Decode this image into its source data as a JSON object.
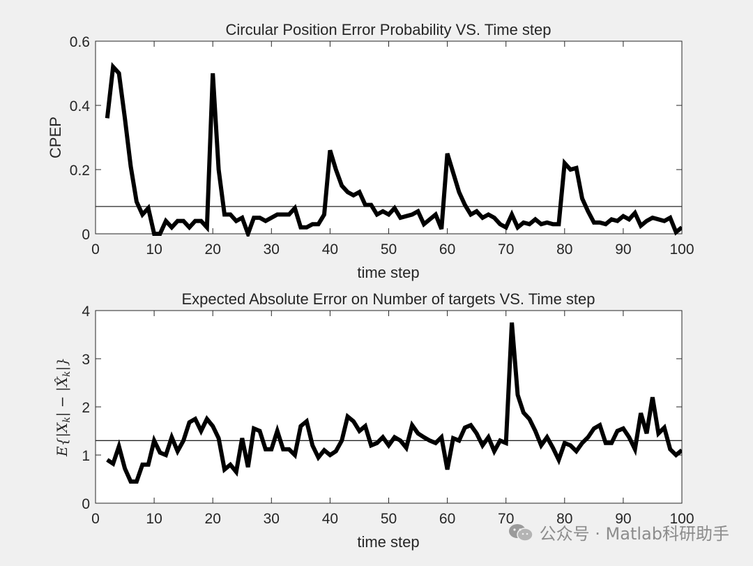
{
  "chart_data": [
    {
      "type": "line",
      "title": "Circular Position Error Probability VS. Time step",
      "xlabel": "time step",
      "ylabel": "CPEP",
      "xlim": [
        0,
        100
      ],
      "ylim": [
        0,
        0.6
      ],
      "xticks": [
        "0",
        "10",
        "20",
        "30",
        "40",
        "50",
        "60",
        "70",
        "80",
        "90",
        "100"
      ],
      "yticks": [
        "0",
        "0.2",
        "0.4",
        "0.6"
      ],
      "xtick_values": [
        0,
        10,
        20,
        30,
        40,
        50,
        60,
        70,
        80,
        90,
        100
      ],
      "ytick_values": [
        0,
        0.2,
        0.4,
        0.6
      ],
      "reference_line": 0.085,
      "x": [
        2,
        3,
        4,
        5,
        6,
        7,
        8,
        9,
        10,
        11,
        12,
        13,
        14,
        15,
        16,
        17,
        18,
        19,
        20,
        21,
        22,
        23,
        24,
        25,
        26,
        27,
        28,
        29,
        30,
        31,
        32,
        33,
        34,
        35,
        36,
        37,
        38,
        39,
        40,
        41,
        42,
        43,
        44,
        45,
        46,
        47,
        48,
        49,
        50,
        51,
        52,
        53,
        54,
        55,
        56,
        57,
        58,
        59,
        60,
        61,
        62,
        63,
        64,
        65,
        66,
        67,
        68,
        69,
        70,
        71,
        72,
        73,
        74,
        75,
        76,
        77,
        78,
        79,
        80,
        81,
        82,
        83,
        84,
        85,
        86,
        87,
        88,
        89,
        90,
        91,
        92,
        93,
        94,
        95,
        96,
        97,
        98,
        99,
        100
      ],
      "series": [
        {
          "name": "CPEP",
          "values": [
            0.36,
            0.52,
            0.5,
            0.36,
            0.21,
            0.1,
            0.06,
            0.08,
            0.0,
            0.0,
            0.04,
            0.02,
            0.04,
            0.04,
            0.02,
            0.04,
            0.04,
            0.02,
            0.5,
            0.2,
            0.06,
            0.06,
            0.04,
            0.05,
            0.0,
            0.05,
            0.05,
            0.04,
            0.05,
            0.06,
            0.06,
            0.06,
            0.08,
            0.02,
            0.02,
            0.03,
            0.03,
            0.06,
            0.26,
            0.2,
            0.15,
            0.13,
            0.12,
            0.13,
            0.09,
            0.09,
            0.06,
            0.07,
            0.06,
            0.08,
            0.05,
            0.055,
            0.06,
            0.07,
            0.03,
            0.045,
            0.06,
            0.015,
            0.25,
            0.19,
            0.13,
            0.09,
            0.06,
            0.07,
            0.05,
            0.06,
            0.05,
            0.03,
            0.02,
            0.06,
            0.02,
            0.035,
            0.03,
            0.045,
            0.03,
            0.035,
            0.03,
            0.03,
            0.22,
            0.2,
            0.205,
            0.11,
            0.07,
            0.035,
            0.035,
            0.03,
            0.045,
            0.04,
            0.055,
            0.045,
            0.065,
            0.025,
            0.04,
            0.05,
            0.045,
            0.04,
            0.05,
            0.005,
            0.02
          ]
        }
      ]
    },
    {
      "type": "line",
      "title": "Expected Absolute Error on Number of targets VS. Time step",
      "xlabel": "time step",
      "ylabel": "E{|X_k| - |\\hat{X}_k|}",
      "xlim": [
        0,
        100
      ],
      "ylim": [
        0,
        4
      ],
      "xticks": [
        "0",
        "10",
        "20",
        "30",
        "40",
        "50",
        "60",
        "70",
        "80",
        "90",
        "100"
      ],
      "yticks": [
        "0",
        "1",
        "2",
        "3",
        "4"
      ],
      "xtick_values": [
        0,
        10,
        20,
        30,
        40,
        50,
        60,
        70,
        80,
        90,
        100
      ],
      "ytick_values": [
        0,
        1,
        2,
        3,
        4
      ],
      "reference_line": 1.3,
      "x": [
        2,
        3,
        4,
        5,
        6,
        7,
        8,
        9,
        10,
        11,
        12,
        13,
        14,
        15,
        16,
        17,
        18,
        19,
        20,
        21,
        22,
        23,
        24,
        25,
        26,
        27,
        28,
        29,
        30,
        31,
        32,
        33,
        34,
        35,
        36,
        37,
        38,
        39,
        40,
        41,
        42,
        43,
        44,
        45,
        46,
        47,
        48,
        49,
        50,
        51,
        52,
        53,
        54,
        55,
        56,
        57,
        58,
        59,
        60,
        61,
        62,
        63,
        64,
        65,
        66,
        67,
        68,
        69,
        70,
        71,
        72,
        73,
        74,
        75,
        76,
        77,
        78,
        79,
        80,
        81,
        82,
        83,
        84,
        85,
        86,
        87,
        88,
        89,
        90,
        91,
        92,
        93,
        94,
        95,
        96,
        97,
        98,
        99,
        100
      ],
      "series": [
        {
          "name": "absolute error",
          "values": [
            0.9,
            0.82,
            1.18,
            0.72,
            0.45,
            0.45,
            0.8,
            0.8,
            1.3,
            1.05,
            1.0,
            1.37,
            1.08,
            1.3,
            1.68,
            1.75,
            1.5,
            1.75,
            1.6,
            1.35,
            0.7,
            0.8,
            0.65,
            1.35,
            0.75,
            1.55,
            1.5,
            1.12,
            1.12,
            1.5,
            1.12,
            1.12,
            1.0,
            1.6,
            1.7,
            1.2,
            0.95,
            1.1,
            1.0,
            1.08,
            1.3,
            1.8,
            1.7,
            1.5,
            1.6,
            1.2,
            1.25,
            1.37,
            1.2,
            1.37,
            1.3,
            1.15,
            1.62,
            1.45,
            1.37,
            1.3,
            1.25,
            1.37,
            0.7,
            1.35,
            1.3,
            1.57,
            1.62,
            1.45,
            1.2,
            1.37,
            1.08,
            1.3,
            1.25,
            3.75,
            2.25,
            1.88,
            1.75,
            1.5,
            1.2,
            1.37,
            1.15,
            0.9,
            1.25,
            1.2,
            1.08,
            1.25,
            1.37,
            1.55,
            1.62,
            1.25,
            1.25,
            1.5,
            1.55,
            1.37,
            1.12,
            1.87,
            1.45,
            2.2,
            1.45,
            1.57,
            1.12,
            1.0,
            1.1
          ]
        }
      ]
    }
  ],
  "watermark": {
    "text": "公众号 · Matlab科研助手",
    "icon": "wechat-icon"
  }
}
